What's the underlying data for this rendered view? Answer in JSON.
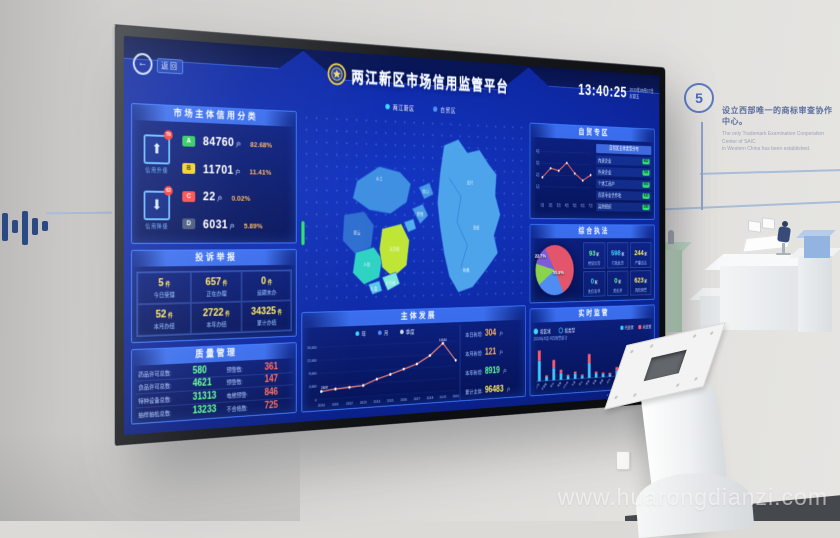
{
  "scene": {
    "watermark": "www.huarongdianzi.com",
    "milestone": {
      "number": "5",
      "title_zh": "设立西部唯一的商标审查协作中心。",
      "desc_en_line1": "The only Trademark Examination Cooperation Center of SAIC",
      "desc_en_line2": "in Western China has been established."
    }
  },
  "dashboard": {
    "back_label": "返回",
    "title": "两江新区市场信用监管平台",
    "clock": {
      "time": "13:40:25",
      "date": "2020年08月07日",
      "weekday": "星期五"
    },
    "region_tabs": [
      {
        "label": "两江新区"
      },
      {
        "label": "自贸区"
      }
    ],
    "credit_class": {
      "title": "市场主体信用分类",
      "upgrade": {
        "badge": "79",
        "label": "信用升级",
        "arrow": "⬆"
      },
      "downgrade": {
        "badge": "63",
        "label": "信用降级",
        "arrow": "⬇"
      },
      "rows": [
        {
          "grade": "A",
          "count": "84760",
          "unit": "户",
          "pct": "82.68%",
          "color": "#2fca5f"
        },
        {
          "grade": "B",
          "count": "11701",
          "unit": "户",
          "pct": "11.41%",
          "color": "#f2d12e"
        },
        {
          "grade": "C",
          "count": "22",
          "unit": "户",
          "pct": "0.02%",
          "color": "#ff4a4a"
        },
        {
          "grade": "D",
          "count": "6031",
          "unit": "户",
          "pct": "5.89%",
          "color": "#46597e"
        }
      ]
    },
    "complaints": {
      "title": "投诉举报",
      "cells": [
        {
          "value": "5",
          "unit": "件",
          "label": "今日受理"
        },
        {
          "value": "657",
          "unit": "件",
          "label": "正在办理"
        },
        {
          "value": "0",
          "unit": "件",
          "label": "逾期未办"
        },
        {
          "value": "52",
          "unit": "件",
          "label": "本月办结"
        },
        {
          "value": "2722",
          "unit": "件",
          "label": "本年办结"
        },
        {
          "value": "34325",
          "unit": "件",
          "label": "累计办结"
        }
      ]
    },
    "quality": {
      "title": "质量管理",
      "rows": [
        {
          "label_left": "药品许可总数:",
          "value_left": "580",
          "label_right": "预警数:",
          "value_right": "361"
        },
        {
          "label_left": "食品许可总数:",
          "value_left": "4621",
          "label_right": "预警数:",
          "value_right": "147"
        },
        {
          "label_left": "特种设备总数:",
          "value_left": "31313",
          "label_right": "电梯预警:",
          "value_right": "846"
        },
        {
          "label_left": "抽样抽检总数:",
          "value_left": "13233",
          "label_right": "不合格数:",
          "value_right": "725"
        }
      ]
    },
    "map": {
      "labels": [
        "水土",
        "翠云",
        "礼嘉",
        "鸳鸯",
        "人和",
        "天宫殿",
        "大竹林",
        "龙兴",
        "复盛",
        "鱼嘴",
        "金山"
      ]
    },
    "development": {
      "title": "主体发展",
      "legend": [
        "年",
        "月",
        "季度"
      ],
      "chart": {
        "type": "line",
        "years": [
          "2010",
          "2011",
          "2012",
          "2013",
          "2014",
          "2015",
          "2016",
          "2017",
          "2018",
          "2019",
          "2020"
        ],
        "values": [
          2408,
          2900,
          3150,
          3480,
          5200,
          6450,
          7900,
          9300,
          11800,
          15534,
          9800
        ],
        "y_ticks": [
          "16,000",
          "12,000",
          "8,000",
          "4,000",
          "0"
        ],
        "first_point_label": "2408",
        "peak_label": "15534"
      },
      "stats": [
        {
          "label": "本日新增:",
          "value": "304",
          "unit": "户"
        },
        {
          "label": "本月新增:",
          "value": "121",
          "unit": "户"
        },
        {
          "label": "本年新增:",
          "value": "8919",
          "unit": "户"
        },
        {
          "label": "累计主体:",
          "value": "96483",
          "unit": "户"
        }
      ]
    },
    "ftz": {
      "title": "自贸专区",
      "chart": {
        "type": "line",
        "x": [
          "1月",
          "2月",
          "3月",
          "4月",
          "5月",
          "6月",
          "7月"
        ],
        "values": [
          18,
          26,
          24,
          31,
          22,
          16,
          21
        ],
        "y_ticks": [
          "4万",
          "3万",
          "2万",
          "1万"
        ]
      },
      "list_header": "自贸区主体类型分布",
      "items": [
        {
          "label": "内资企业",
          "tag": "982"
        },
        {
          "label": "外资企业",
          "tag": "761"
        },
        {
          "label": "个体工商户",
          "tag": "650"
        },
        {
          "label": "农民专业合作社",
          "tag": "433"
        },
        {
          "label": "其他组织",
          "tag": "288"
        }
      ]
    },
    "enforcement": {
      "title": "综合执法",
      "pie": {
        "type": "pie",
        "slices": [
          {
            "label": "50.9%",
            "pct": 50.9,
            "color": "#e2556b"
          },
          {
            "label": "22.7%",
            "pct": 22.7,
            "color": "#4f8df5"
          },
          {
            "label": "",
            "pct": 14.0,
            "color": "#8bd34f"
          },
          {
            "label": "",
            "pct": 12.4,
            "color": "#7e5bd8"
          }
        ]
      },
      "stats": [
        {
          "value": "93",
          "unit": "家",
          "label": "经营异常"
        },
        {
          "value": "598",
          "unit": "家",
          "label": "行政处罚"
        },
        {
          "value": "244",
          "unit": "家",
          "label": "严重违法"
        },
        {
          "value": "0",
          "unit": "家",
          "label": "失信名单"
        },
        {
          "value": "0",
          "unit": "家",
          "label": "黑名单"
        },
        {
          "value": "623",
          "unit": "家",
          "label": "风险预警"
        }
      ]
    },
    "monitor": {
      "title": "实时监管",
      "radios": [
        "按区域",
        "按类型"
      ],
      "legend": [
        {
          "label": "已处置",
          "color": "#3fc6ff"
        },
        {
          "label": "未处置",
          "color": "#ff5b6a"
        }
      ],
      "caption": "2019年8月-9月预警统计",
      "chart": {
        "type": "stacked-bar",
        "categories": [
          "人和",
          "天宫殿",
          "翠云",
          "鸳鸯",
          "大竹林",
          "礼嘉",
          "金山",
          "康美",
          "鱼嘴",
          "复盛",
          "龙兴",
          "水土",
          "双凤桥",
          "王家",
          "玉峰山",
          "其他"
        ],
        "blue": [
          30,
          6,
          18,
          10,
          5,
          8,
          4,
          22,
          6,
          5,
          4,
          9,
          5,
          4,
          3,
          6
        ],
        "red": [
          15,
          2,
          12,
          5,
          2,
          3,
          2,
          14,
          3,
          2,
          2,
          5,
          2,
          2,
          1,
          3
        ]
      }
    },
    "colors": {
      "accent_blue": "#3e7bff",
      "value_yellow": "#ffe95e",
      "value_green": "#62ff96",
      "value_red": "#ff6a5e",
      "value_orange": "#ffb45e",
      "line_salmon": "#ff8a7a"
    }
  }
}
